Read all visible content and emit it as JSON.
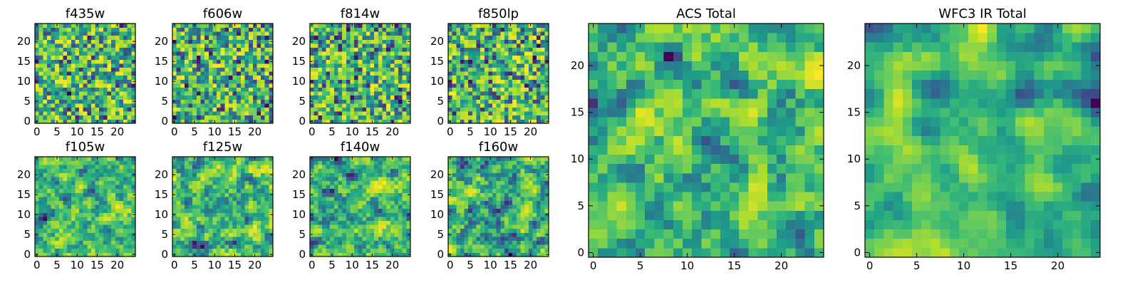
{
  "chart_data": [
    {
      "type": "heatmap",
      "title": "f435w",
      "grid_size": [
        25,
        25
      ],
      "xlim": [
        -0.5,
        24.5
      ],
      "ylim": [
        -0.5,
        24.5
      ],
      "xticks": [
        "0",
        "5",
        "10",
        "15",
        "20"
      ],
      "yticks": [
        "0",
        "5",
        "10",
        "15",
        "20"
      ],
      "seed": 435,
      "smooth": 0,
      "colormap": "viridis"
    },
    {
      "type": "heatmap",
      "title": "f606w",
      "grid_size": [
        25,
        25
      ],
      "xlim": [
        -0.5,
        24.5
      ],
      "ylim": [
        -0.5,
        24.5
      ],
      "xticks": [
        "0",
        "5",
        "10",
        "15",
        "20"
      ],
      "yticks": [
        "0",
        "5",
        "10",
        "15",
        "20"
      ],
      "seed": 606,
      "smooth": 0,
      "colormap": "viridis"
    },
    {
      "type": "heatmap",
      "title": "f814w",
      "grid_size": [
        25,
        25
      ],
      "xlim": [
        -0.5,
        24.5
      ],
      "ylim": [
        -0.5,
        24.5
      ],
      "xticks": [
        "0",
        "5",
        "10",
        "15",
        "20"
      ],
      "yticks": [
        "0",
        "5",
        "10",
        "15",
        "20"
      ],
      "seed": 814,
      "smooth": 0,
      "colormap": "viridis"
    },
    {
      "type": "heatmap",
      "title": "f850lp",
      "grid_size": [
        25,
        25
      ],
      "xlim": [
        -0.5,
        24.5
      ],
      "ylim": [
        -0.5,
        24.5
      ],
      "xticks": [
        "0",
        "5",
        "10",
        "15",
        "20"
      ],
      "yticks": [
        "0",
        "5",
        "10",
        "15",
        "20"
      ],
      "seed": 850,
      "smooth": 0,
      "colormap": "viridis"
    },
    {
      "type": "heatmap",
      "title": "f105w",
      "grid_size": [
        25,
        25
      ],
      "xlim": [
        -0.5,
        24.5
      ],
      "ylim": [
        -0.5,
        24.5
      ],
      "xticks": [
        "0",
        "5",
        "10",
        "15",
        "20"
      ],
      "yticks": [
        "0",
        "5",
        "10",
        "15",
        "20"
      ],
      "seed": 105,
      "smooth": 1,
      "colormap": "viridis"
    },
    {
      "type": "heatmap",
      "title": "f125w",
      "grid_size": [
        25,
        25
      ],
      "xlim": [
        -0.5,
        24.5
      ],
      "ylim": [
        -0.5,
        24.5
      ],
      "xticks": [
        "0",
        "5",
        "10",
        "15",
        "20"
      ],
      "yticks": [
        "0",
        "5",
        "10",
        "15",
        "20"
      ],
      "seed": 125,
      "smooth": 1,
      "colormap": "viridis"
    },
    {
      "type": "heatmap",
      "title": "f140w",
      "grid_size": [
        25,
        25
      ],
      "xlim": [
        -0.5,
        24.5
      ],
      "ylim": [
        -0.5,
        24.5
      ],
      "xticks": [
        "0",
        "5",
        "10",
        "15",
        "20"
      ],
      "yticks": [
        "0",
        "5",
        "10",
        "15",
        "20"
      ],
      "seed": 140,
      "smooth": 1,
      "colormap": "viridis"
    },
    {
      "type": "heatmap",
      "title": "f160w",
      "grid_size": [
        25,
        25
      ],
      "xlim": [
        -0.5,
        24.5
      ],
      "ylim": [
        -0.5,
        24.5
      ],
      "xticks": [
        "0",
        "5",
        "10",
        "15",
        "20"
      ],
      "yticks": [
        "0",
        "5",
        "10",
        "15",
        "20"
      ],
      "seed": 160,
      "smooth": 1,
      "colormap": "viridis"
    },
    {
      "type": "heatmap",
      "title": "ACS Total",
      "grid_size": [
        25,
        25
      ],
      "xlim": [
        -0.5,
        24.5
      ],
      "ylim": [
        -0.5,
        24.5
      ],
      "xticks": [
        "0",
        "5",
        "10",
        "15",
        "20"
      ],
      "yticks": [
        "0",
        "5",
        "10",
        "15",
        "20"
      ],
      "seed": 1001,
      "smooth": 1,
      "colormap": "viridis"
    },
    {
      "type": "heatmap",
      "title": "WFC3 IR Total",
      "grid_size": [
        25,
        25
      ],
      "xlim": [
        -0.5,
        24.5
      ],
      "ylim": [
        -0.5,
        24.5
      ],
      "xticks": [
        "0",
        "5",
        "10",
        "15",
        "20"
      ],
      "yticks": [
        "0",
        "5",
        "10",
        "15",
        "20"
      ],
      "seed": 2002,
      "smooth": 2,
      "colormap": "viridis"
    }
  ]
}
